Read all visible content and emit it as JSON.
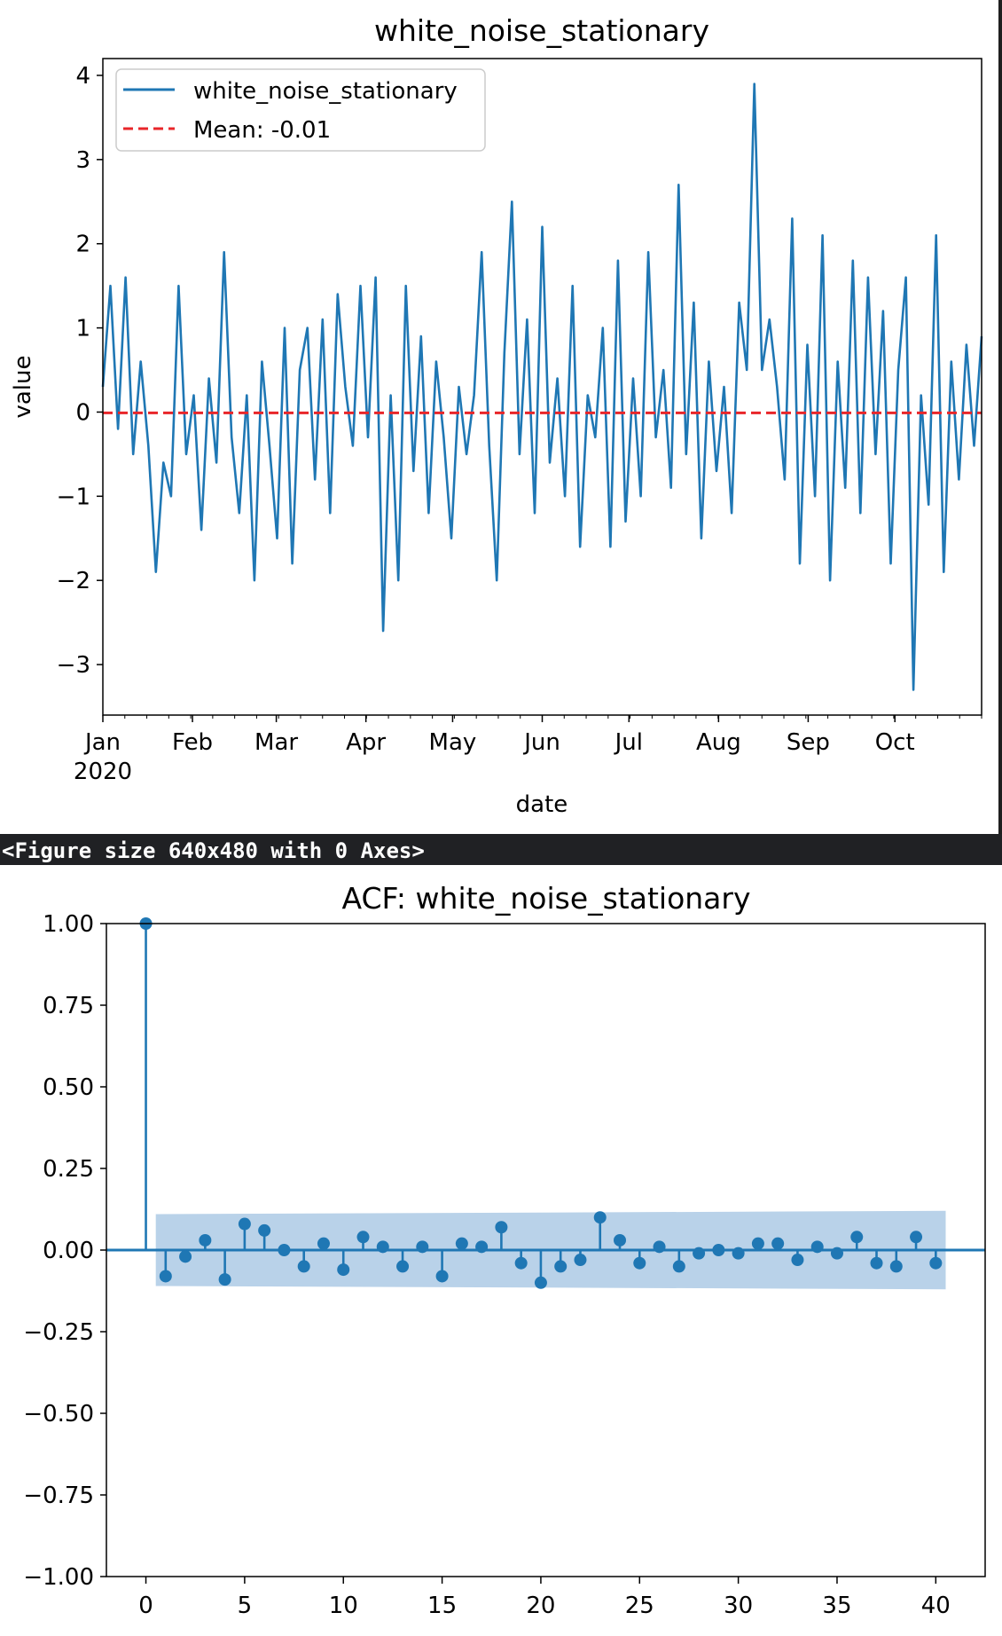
{
  "output_banner": "<Figure size 640x480 with 0 Axes>",
  "colors": {
    "series": "#1f77b4",
    "mean_line": "#e8262a",
    "confidence_band": "#b9d2e9",
    "banner_bg": "#202124",
    "banner_text": "#ffffff"
  },
  "chart_data": [
    {
      "type": "line",
      "title": "white_noise_stationary",
      "xlabel": "date",
      "ylabel": "value",
      "ylim": [
        -3.6,
        4.2
      ],
      "yticks": [
        4,
        3,
        2,
        1,
        0,
        -1,
        -2,
        -3
      ],
      "ytick_labels": [
        "4",
        "3",
        "2",
        "1",
        "0",
        "−1",
        "−2",
        "−3"
      ],
      "xtick_labels": [
        "Jan",
        "Feb",
        "Mar",
        "Apr",
        "May",
        "Jun",
        "Jul",
        "Aug",
        "Sep",
        "Oct"
      ],
      "xtick_days": [
        0,
        31,
        60,
        91,
        121,
        152,
        182,
        213,
        244,
        274
      ],
      "xtick_year_label": "2020",
      "x_range_days": [
        0,
        304
      ],
      "legend": [
        {
          "label": "white_noise_stationary",
          "style": "solid"
        },
        {
          "label": "Mean: -0.01",
          "style": "dashed"
        }
      ],
      "legend_position": "upper-left",
      "mean": -0.01,
      "series": [
        {
          "name": "white_noise_stationary",
          "values": [
            0.3,
            1.5,
            -0.2,
            1.6,
            -0.5,
            0.6,
            -0.4,
            -1.9,
            -0.6,
            -1.0,
            1.5,
            -0.5,
            0.2,
            -1.4,
            0.4,
            -0.6,
            1.9,
            -0.3,
            -1.2,
            0.2,
            -2.0,
            0.6,
            -0.4,
            -1.5,
            1.0,
            -1.8,
            0.5,
            1.0,
            -0.8,
            1.1,
            -1.2,
            1.4,
            0.3,
            -0.4,
            1.5,
            -0.3,
            1.6,
            -2.6,
            0.2,
            -2.0,
            1.5,
            -0.7,
            0.9,
            -1.2,
            0.6,
            -0.3,
            -1.5,
            0.3,
            -0.5,
            0.2,
            1.9,
            -0.4,
            -2.0,
            0.7,
            2.5,
            -0.5,
            1.1,
            -1.2,
            2.2,
            -0.6,
            0.4,
            -1.0,
            1.5,
            -1.6,
            0.2,
            -0.3,
            1.0,
            -1.6,
            1.8,
            -1.3,
            0.4,
            -1.0,
            1.9,
            -0.3,
            0.5,
            -0.9,
            2.7,
            -0.5,
            1.3,
            -1.5,
            0.6,
            -0.7,
            0.3,
            -1.2,
            1.3,
            0.5,
            3.9,
            0.5,
            1.1,
            0.3,
            -0.8,
            2.3,
            -1.8,
            0.8,
            -1.0,
            2.1,
            -2.0,
            0.6,
            -0.9,
            1.8,
            -1.2,
            1.6,
            -0.5,
            1.2,
            -1.8,
            0.5,
            1.6,
            -3.3,
            0.2,
            -1.1,
            2.1,
            -1.9,
            0.6,
            -0.8,
            0.8,
            -0.4,
            0.9
          ]
        }
      ]
    },
    {
      "type": "stem",
      "title": "ACF: white_noise_stationary",
      "xlabel": "",
      "ylabel": "",
      "xlim": [
        -2,
        42.5
      ],
      "ylim": [
        -1.0,
        1.0
      ],
      "xticks": [
        0,
        5,
        10,
        15,
        20,
        25,
        30,
        35,
        40
      ],
      "xtick_labels": [
        "0",
        "5",
        "10",
        "15",
        "20",
        "25",
        "30",
        "35",
        "40"
      ],
      "yticks": [
        1.0,
        0.75,
        0.5,
        0.25,
        0.0,
        -0.25,
        -0.5,
        -0.75,
        -1.0
      ],
      "ytick_labels": [
        "1.00",
        "0.75",
        "0.50",
        "0.25",
        "0.00",
        "−0.25",
        "−0.50",
        "−0.75",
        "−1.00"
      ],
      "lags": [
        0,
        1,
        2,
        3,
        4,
        5,
        6,
        7,
        8,
        9,
        10,
        11,
        12,
        13,
        14,
        15,
        16,
        17,
        18,
        19,
        20,
        21,
        22,
        23,
        24,
        25,
        26,
        27,
        28,
        29,
        30,
        31,
        32,
        33,
        34,
        35,
        36,
        37,
        38,
        39,
        40
      ],
      "values": [
        1.0,
        -0.08,
        -0.02,
        0.03,
        -0.09,
        0.08,
        0.06,
        0.0,
        -0.05,
        0.02,
        -0.06,
        0.04,
        0.01,
        -0.05,
        0.01,
        -0.08,
        0.02,
        0.01,
        0.07,
        -0.04,
        -0.1,
        -0.05,
        -0.03,
        0.1,
        0.03,
        -0.04,
        0.01,
        -0.05,
        -0.01,
        0.0,
        -0.01,
        0.02,
        0.02,
        -0.03,
        0.01,
        -0.01,
        0.04,
        -0.04,
        -0.05,
        0.04,
        -0.04
      ],
      "confidence_band": {
        "lag_start": 0.5,
        "lag_end": 40.5,
        "lower_start": -0.11,
        "upper_start": 0.11,
        "lower_end": -0.12,
        "upper_end": 0.12
      }
    }
  ]
}
